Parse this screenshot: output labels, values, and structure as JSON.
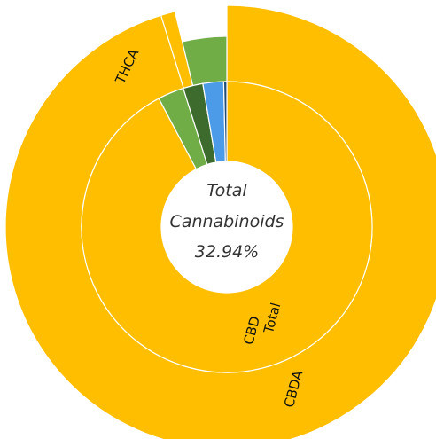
{
  "chart_data": {
    "type": "sunburst",
    "center": {
      "line1": "Total",
      "line2": "Cannabinoids",
      "value": "32.94%"
    },
    "colors": {
      "cbd": "#FFBF00",
      "thc_light": "#70AD47",
      "thc_dark": "#3D6B2D",
      "blue": "#4C9BE8",
      "navy": "#1F4E79",
      "border": "#ffffff"
    },
    "inner_ring": [
      {
        "name": "Total CBD",
        "color": "cbd",
        "value": 92.25
      },
      {
        "name": "",
        "color": "thc_light",
        "value": 2.9
      },
      {
        "name": "",
        "color": "thc_dark",
        "value": 2.2
      },
      {
        "name": "",
        "color": "blue",
        "value": 2.3
      },
      {
        "name": "",
        "color": "navy",
        "value": 0.35
      }
    ],
    "outer_ring": [
      {
        "name": "CBDA",
        "color": "cbd",
        "value": 91.1
      },
      {
        "name": "",
        "color": "cbd",
        "value": 1.0
      },
      {
        "name": "THCA",
        "color": "thc_light",
        "value": 3.6
      }
    ],
    "labels": {
      "inner_label": "Total CBD",
      "inner_label_lines": [
        "Total",
        "CBD"
      ],
      "outer_label_main": "CBDA",
      "outer_label_thca": "THCA"
    }
  }
}
